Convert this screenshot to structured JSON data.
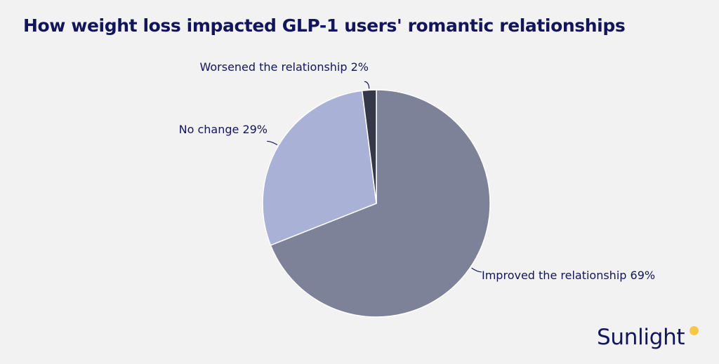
{
  "title": "How weight loss impacted GLP-1 users' romantic relationships",
  "brand": {
    "name": "Sunlight",
    "dot_color": "#f6c84a"
  },
  "chart_data": {
    "type": "pie",
    "title": "How weight loss impacted GLP-1 users' romantic relationships",
    "slices": [
      {
        "label": "Improved the relationship",
        "value": 69,
        "display": "Improved the relationship 69%",
        "color": "#7e8299"
      },
      {
        "label": "No change",
        "value": 29,
        "display": "No change 29%",
        "color": "#aab1d7"
      },
      {
        "label": "Worsened the relationship",
        "value": 2,
        "display": "Worsened the relationship 2%",
        "color": "#343848"
      }
    ],
    "start_position": "12 o'clock",
    "direction": "clockwise",
    "legend": "none (labels beside slices)"
  }
}
